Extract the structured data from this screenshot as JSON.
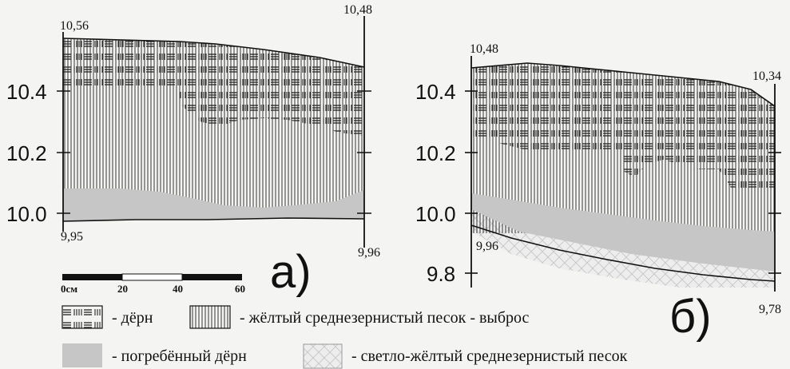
{
  "panel_a": {
    "label": "а)",
    "top_left_elev": "10,56",
    "top_right_elev": "10,48",
    "bottom_left_elev": "9,95",
    "bottom_right_elev": "9,96",
    "y_ticks": [
      "10.4",
      "10.2",
      "10.0"
    ]
  },
  "panel_b": {
    "label": "б)",
    "top_left_elev": "10,48",
    "top_right_elev": "10,34",
    "bottom_left_elev": "9,96",
    "bottom_right_elev": "9,78",
    "y_ticks": [
      "10.4",
      "10.2",
      "10.0",
      "9.8"
    ]
  },
  "scale_bar": {
    "labels": [
      "0см",
      "20",
      "40",
      "60"
    ]
  },
  "legend": {
    "items": [
      {
        "key": "turf",
        "text": "- дёрн"
      },
      {
        "key": "yellow_sand_ejecta",
        "text": "- жёлтый среднезернистый песок - выброс"
      },
      {
        "key": "buried_turf",
        "text": "- погребённый дёрн"
      },
      {
        "key": "light_yellow_sand",
        "text": "- светло-жёлтый среднезернистый песок"
      }
    ]
  },
  "colors": {
    "background": "#f4f4f2",
    "ink": "#1a1a1a",
    "buried_turf": "#c6c6c6"
  }
}
